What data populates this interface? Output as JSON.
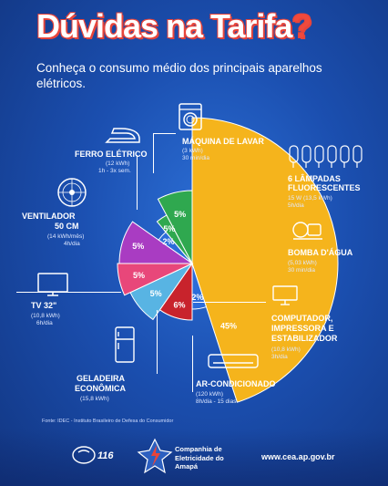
{
  "header": {
    "title_part1": "Dúvidas na Tarifa",
    "title_part2": "?",
    "subtitle": "Conheça o consumo médio dos principais aparelhos elétricos."
  },
  "colors": {
    "accent": "#ef4a3c",
    "background": "#1b4fb0"
  },
  "chart_data": {
    "type": "pie",
    "categories": [
      "Ar-condicionado",
      "Máquina de lavar",
      "6 lâmpadas fluorescentes",
      "Bomba d'água",
      "Computador, impressora e estabilizador",
      "Geladeira econômica",
      "TV 32\"",
      "Ventilador 50 cm",
      "Ferro elétrico"
    ],
    "values": [
      45,
      5,
      5,
      2,
      2,
      6,
      5,
      5,
      5
    ],
    "colors": [
      "#f5b41c",
      "#2fa84f",
      "#2fa84f",
      "#2b6cd9",
      "#2b6cd9",
      "#c8232c",
      "#58b4e3",
      "#e8477a",
      "#a93cc2"
    ],
    "labels": [
      "45%",
      "5%",
      "5%",
      "2%",
      "2%",
      "6%",
      "5%",
      "5%",
      "5%"
    ]
  },
  "appliances": {
    "ferro": {
      "name": "FERRO ELÉTRICO",
      "d1": "(12 kWh)",
      "d2": "1h - 3x sem."
    },
    "maquina": {
      "name": "MÁQUINA DE LAVAR",
      "d1": "(3 kWh)",
      "d2": "30 min/dia"
    },
    "lampadas": {
      "name1": "6 LÂMPADAS",
      "name2": "FLUORESCENTES",
      "d1": "15 W (13,5 kWh)",
      "d2": "5h/dia"
    },
    "ventilador": {
      "name1": "VENTILADOR",
      "name2": "50 CM",
      "d1": "(14 kWh/mês)",
      "d2": "4h/dia"
    },
    "bomba": {
      "name": "BOMBA D'ÁGUA",
      "d1": "(5,03 kWh)",
      "d2": "30 min/dia"
    },
    "tv": {
      "name": "TV 32\"",
      "d1": "(10,8 kWh)",
      "d2": "6h/dia"
    },
    "computador": {
      "name1": "COMPUTADOR,",
      "name2": "IMPRESSORA E",
      "name3": "ESTABILIZADOR",
      "d1": "(10,8 kWh)",
      "d2": "3h/dia"
    },
    "geladeira": {
      "name1": "GELADEIRA",
      "name2": "ECONÔMICA",
      "d1": "(15,8 kWh)"
    },
    "ar": {
      "name": "AR-CONDICIONADO",
      "d1": "(120 kWh)",
      "d2": "8h/dia - 15 dias"
    }
  },
  "footer": {
    "source": "Fonte: IDEC - Instituto Brasileiro de Defesa do Consumidor",
    "phone": "116",
    "company1": "Companhia de",
    "company2": "Eletricidade do",
    "company3": "Amapá",
    "website": "www.cea.ap.gov.br"
  }
}
